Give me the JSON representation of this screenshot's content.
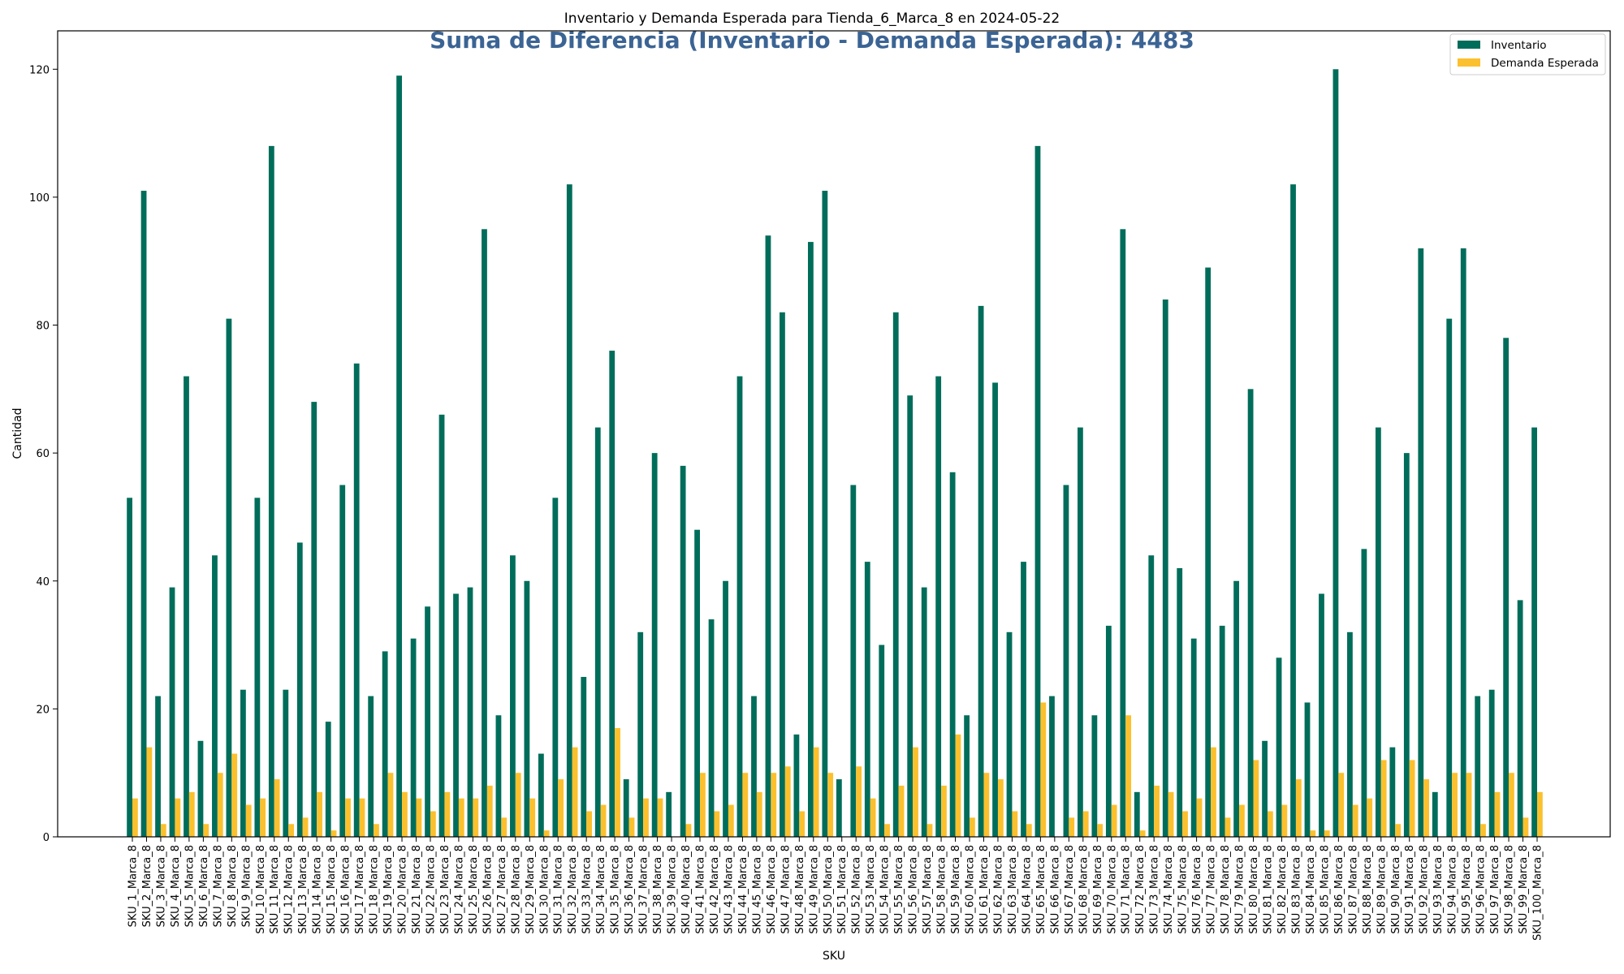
{
  "chart_data": {
    "type": "bar",
    "title": "Inventario y Demanda Esperada para Tienda_6_Marca_8 en 2024-05-22",
    "subtitle": "Suma de Diferencia (Inventario - Demanda Esperada): 4483",
    "xlabel": "SKU",
    "ylabel": "Cantidad",
    "ylim": [
      0,
      126
    ],
    "yticks": [
      0,
      20,
      40,
      60,
      80,
      100,
      120
    ],
    "grid": false,
    "legend_position": "top-right",
    "categories": [
      "SKU_1_Marca_8",
      "SKU_2_Marca_8",
      "SKU_3_Marca_8",
      "SKU_4_Marca_8",
      "SKU_5_Marca_8",
      "SKU_6_Marca_8",
      "SKU_7_Marca_8",
      "SKU_8_Marca_8",
      "SKU_9_Marca_8",
      "SKU_10_Marca_8",
      "SKU_11_Marca_8",
      "SKU_12_Marca_8",
      "SKU_13_Marca_8",
      "SKU_14_Marca_8",
      "SKU_15_Marca_8",
      "SKU_16_Marca_8",
      "SKU_17_Marca_8",
      "SKU_18_Marca_8",
      "SKU_19_Marca_8",
      "SKU_20_Marca_8",
      "SKU_21_Marca_8",
      "SKU_22_Marca_8",
      "SKU_23_Marca_8",
      "SKU_24_Marca_8",
      "SKU_25_Marca_8",
      "SKU_26_Marca_8",
      "SKU_27_Marca_8",
      "SKU_28_Marca_8",
      "SKU_29_Marca_8",
      "SKU_30_Marca_8",
      "SKU_31_Marca_8",
      "SKU_32_Marca_8",
      "SKU_33_Marca_8",
      "SKU_34_Marca_8",
      "SKU_35_Marca_8",
      "SKU_36_Marca_8",
      "SKU_37_Marca_8",
      "SKU_38_Marca_8",
      "SKU_39_Marca_8",
      "SKU_40_Marca_8",
      "SKU_41_Marca_8",
      "SKU_42_Marca_8",
      "SKU_43_Marca_8",
      "SKU_44_Marca_8",
      "SKU_45_Marca_8",
      "SKU_46_Marca_8",
      "SKU_47_Marca_8",
      "SKU_48_Marca_8",
      "SKU_49_Marca_8",
      "SKU_50_Marca_8",
      "SKU_51_Marca_8",
      "SKU_52_Marca_8",
      "SKU_53_Marca_8",
      "SKU_54_Marca_8",
      "SKU_55_Marca_8",
      "SKU_56_Marca_8",
      "SKU_57_Marca_8",
      "SKU_58_Marca_8",
      "SKU_59_Marca_8",
      "SKU_60_Marca_8",
      "SKU_61_Marca_8",
      "SKU_62_Marca_8",
      "SKU_63_Marca_8",
      "SKU_64_Marca_8",
      "SKU_65_Marca_8",
      "SKU_66_Marca_8",
      "SKU_67_Marca_8",
      "SKU_68_Marca_8",
      "SKU_69_Marca_8",
      "SKU_70_Marca_8",
      "SKU_71_Marca_8",
      "SKU_72_Marca_8",
      "SKU_73_Marca_8",
      "SKU_74_Marca_8",
      "SKU_75_Marca_8",
      "SKU_76_Marca_8",
      "SKU_77_Marca_8",
      "SKU_78_Marca_8",
      "SKU_79_Marca_8",
      "SKU_80_Marca_8",
      "SKU_81_Marca_8",
      "SKU_82_Marca_8",
      "SKU_83_Marca_8",
      "SKU_84_Marca_8",
      "SKU_85_Marca_8",
      "SKU_86_Marca_8",
      "SKU_87_Marca_8",
      "SKU_88_Marca_8",
      "SKU_89_Marca_8",
      "SKU_90_Marca_8",
      "SKU_91_Marca_8",
      "SKU_92_Marca_8",
      "SKU_93_Marca_8",
      "SKU_94_Marca_8",
      "SKU_95_Marca_8",
      "SKU_96_Marca_8",
      "SKU_97_Marca_8",
      "SKU_98_Marca_8",
      "SKU_99_Marca_8",
      "SKU_100_Marca_8"
    ],
    "series": [
      {
        "name": "Inventario",
        "color": "#006d5b",
        "values": [
          53,
          101,
          22,
          39,
          72,
          15,
          44,
          81,
          23,
          53,
          108,
          23,
          46,
          68,
          18,
          55,
          74,
          22,
          29,
          119,
          31,
          36,
          66,
          38,
          39,
          95,
          19,
          44,
          40,
          13,
          53,
          102,
          25,
          64,
          76,
          9,
          32,
          60,
          7,
          58,
          48,
          34,
          40,
          72,
          22,
          94,
          82,
          16,
          93,
          101,
          9,
          55,
          43,
          30,
          82,
          69,
          39,
          72,
          57,
          19,
          83,
          71,
          32,
          43,
          108,
          22,
          55,
          64,
          19,
          33,
          95,
          7,
          44,
          84,
          42,
          31,
          89,
          33,
          40,
          70,
          15,
          28,
          102,
          21,
          38,
          120,
          32,
          45,
          64,
          14,
          60,
          92,
          7,
          81,
          92,
          22,
          23,
          78,
          37,
          64
        ]
      },
      {
        "name": "Demanda Esperada",
        "color": "#fbc02d",
        "values": [
          6,
          14,
          2,
          6,
          7,
          2,
          10,
          13,
          5,
          6,
          9,
          2,
          3,
          7,
          1,
          6,
          6,
          2,
          10,
          7,
          6,
          4,
          7,
          6,
          6,
          8,
          3,
          10,
          6,
          1,
          9,
          14,
          4,
          5,
          17,
          3,
          6,
          6,
          0,
          2,
          10,
          4,
          5,
          10,
          7,
          10,
          11,
          4,
          14,
          10,
          0,
          11,
          6,
          2,
          8,
          14,
          2,
          8,
          16,
          3,
          10,
          9,
          4,
          2,
          21,
          0,
          3,
          4,
          2,
          5,
          19,
          1,
          8,
          7,
          4,
          6,
          14,
          3,
          5,
          12,
          4,
          5,
          9,
          1,
          1,
          10,
          5,
          6,
          12,
          2,
          12,
          9,
          0,
          10,
          10,
          2,
          7,
          10,
          3,
          7
        ]
      }
    ],
    "subtitle_color": "#3b6494"
  }
}
